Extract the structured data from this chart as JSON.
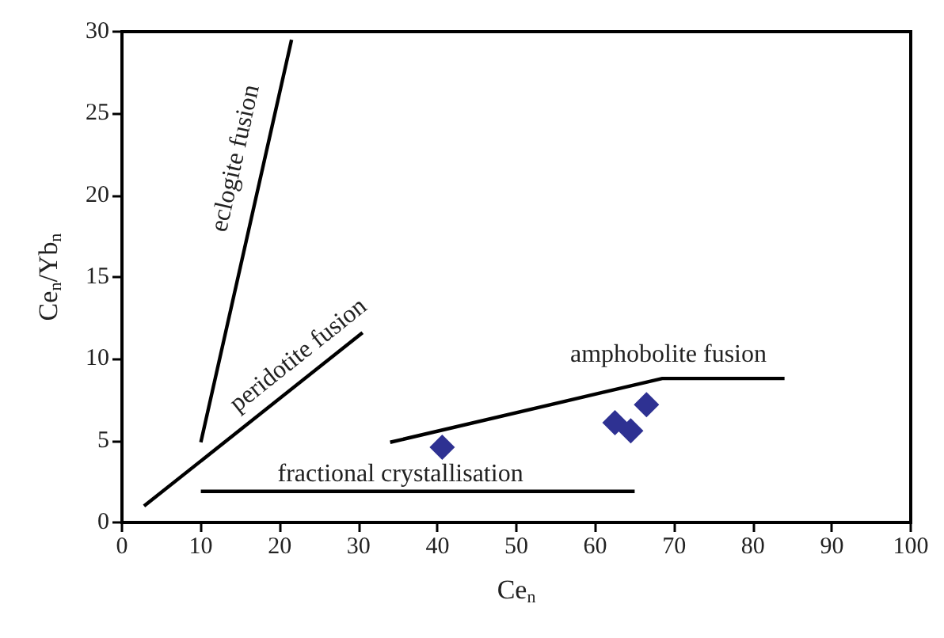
{
  "chart_data": {
    "type": "line",
    "xlabel": "Ce$_{n}$",
    "ylabel": "Ce$_{n}$/Yb$_{n}$",
    "xlim": [
      0,
      100
    ],
    "xticks": [
      0,
      10,
      20,
      30,
      40,
      50,
      60,
      70,
      80,
      90,
      100
    ],
    "ylim": [
      0,
      30
    ],
    "yticks": [
      0,
      5,
      10,
      15,
      20,
      25,
      30
    ],
    "grid": false,
    "series": [
      {
        "color": "#000000",
        "marker": "none",
        "x": [
          10,
          21.5
        ],
        "values": [
          4.9,
          29.5
        ]
      },
      {
        "color": "#000000",
        "marker": "none",
        "x": [
          2.8,
          30.5
        ],
        "values": [
          1.0,
          11.6
        ]
      },
      {
        "color": "#000000",
        "marker": "none",
        "x": [
          10,
          65
        ],
        "values": [
          1.9,
          1.9
        ]
      },
      {
        "color": "#000000",
        "marker": "none",
        "x": [
          34,
          68.5,
          84
        ],
        "values": [
          4.9,
          8.8,
          8.8
        ]
      },
      {
        "type": "scatter",
        "color": "#2e3192",
        "marker": "diamond",
        "x": [
          40.6,
          62.5,
          64.5,
          66.5
        ],
        "values": [
          4.6,
          6.1,
          5.6,
          7.2
        ]
      }
    ],
    "annotations": [
      "eclogite fusion",
      "peridotite fusion",
      "fractional crystallisation",
      "amphobolite fusion"
    ]
  }
}
